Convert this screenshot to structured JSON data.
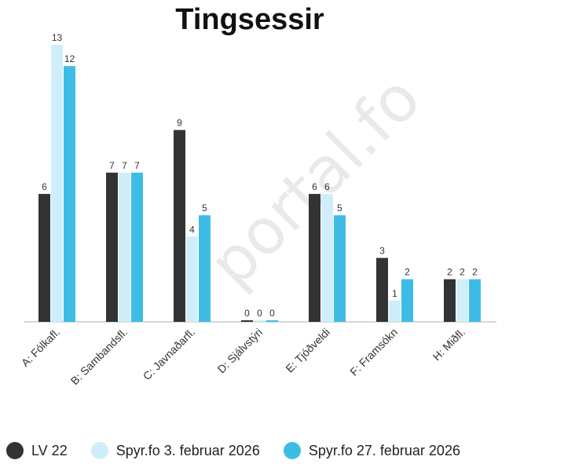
{
  "chart_data": {
    "type": "bar",
    "title": "Tingsessir",
    "watermark": "portal.fo",
    "categories": [
      "A: Fólkafl.",
      "B: Sambandsfl.",
      "C: Javnaðarfl.",
      "D: Sjálvstýri",
      "E: Tjóðveldi",
      "F: Framsókn",
      "H: Miðfl."
    ],
    "series": [
      {
        "name": "LV 22",
        "color": "#333333",
        "values": [
          6,
          7,
          9,
          0,
          6,
          3,
          2
        ]
      },
      {
        "name": "Spyr.fo 3. februar 2026",
        "color": "#cfeefa",
        "values": [
          13,
          7,
          4,
          0,
          6,
          1,
          2
        ]
      },
      {
        "name": "Spyr.fo 27. februar 2026",
        "color": "#3dbde6",
        "values": [
          12,
          7,
          5,
          0,
          5,
          2,
          2
        ]
      }
    ],
    "ylim": [
      0,
      13
    ],
    "grid": false,
    "legend_position": "bottom"
  }
}
